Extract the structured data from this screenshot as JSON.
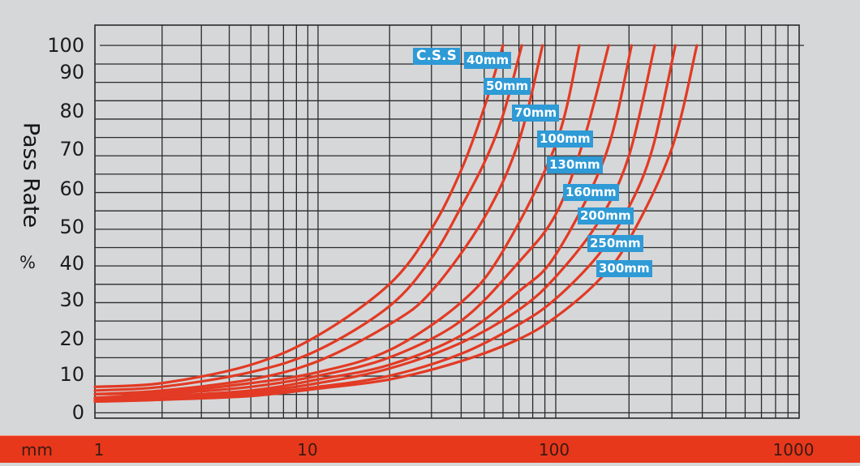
{
  "chart_data": {
    "type": "line",
    "title": "",
    "xlabel": "mm",
    "ylabel": "Pass Rate",
    "ylabel_unit": "%",
    "x_scale": "log",
    "xlim": [
      1,
      1000
    ],
    "ylim": [
      0,
      100
    ],
    "x_ticks": [
      "1",
      "10",
      "100",
      "1000"
    ],
    "y_ticks": [
      "0",
      "10",
      "20",
      "30",
      "40",
      "50",
      "60",
      "70",
      "80",
      "90",
      "100"
    ],
    "grid": true,
    "legend_header": "C.S.S",
    "line_color": "#e23a24",
    "series": [
      {
        "name": "40mm",
        "points": [
          [
            1,
            7
          ],
          [
            2,
            8
          ],
          [
            5,
            13
          ],
          [
            10,
            21
          ],
          [
            20,
            35
          ],
          [
            30,
            50
          ],
          [
            40,
            66
          ],
          [
            50,
            83
          ],
          [
            60,
            100
          ]
        ]
      },
      {
        "name": "50mm",
        "points": [
          [
            1,
            6
          ],
          [
            2,
            7
          ],
          [
            5,
            11
          ],
          [
            10,
            17
          ],
          [
            20,
            29
          ],
          [
            30,
            42
          ],
          [
            40,
            56
          ],
          [
            50,
            68
          ],
          [
            60,
            81
          ],
          [
            72,
            100
          ]
        ]
      },
      {
        "name": "70mm",
        "points": [
          [
            1,
            5
          ],
          [
            2,
            6
          ],
          [
            5,
            9
          ],
          [
            10,
            14
          ],
          [
            20,
            24
          ],
          [
            30,
            33
          ],
          [
            50,
            53
          ],
          [
            70,
            74
          ],
          [
            88,
            100
          ]
        ]
      },
      {
        "name": "100mm",
        "points": [
          [
            1,
            5
          ],
          [
            2,
            5.5
          ],
          [
            5,
            8
          ],
          [
            10,
            11
          ],
          [
            20,
            17
          ],
          [
            40,
            30
          ],
          [
            60,
            44
          ],
          [
            100,
            73
          ],
          [
            125,
            100
          ]
        ]
      },
      {
        "name": "130mm",
        "points": [
          [
            1,
            4
          ],
          [
            2,
            5
          ],
          [
            5,
            7
          ],
          [
            10,
            10
          ],
          [
            20,
            15
          ],
          [
            40,
            25
          ],
          [
            70,
            41
          ],
          [
            100,
            54
          ],
          [
            130,
            74
          ],
          [
            165,
            100
          ]
        ]
      },
      {
        "name": "160mm",
        "points": [
          [
            1,
            4
          ],
          [
            2,
            4.5
          ],
          [
            5,
            6
          ],
          [
            10,
            9
          ],
          [
            20,
            13
          ],
          [
            40,
            21
          ],
          [
            70,
            33
          ],
          [
            100,
            43
          ],
          [
            160,
            70
          ],
          [
            205,
            100
          ]
        ]
      },
      {
        "name": "200mm",
        "points": [
          [
            1,
            3.5
          ],
          [
            2,
            4
          ],
          [
            5,
            5.5
          ],
          [
            10,
            8
          ],
          [
            20,
            12
          ],
          [
            40,
            19
          ],
          [
            70,
            28
          ],
          [
            100,
            37
          ],
          [
            150,
            52
          ],
          [
            200,
            70
          ],
          [
            255,
            100
          ]
        ]
      },
      {
        "name": "250mm",
        "points": [
          [
            1,
            3
          ],
          [
            2,
            3.5
          ],
          [
            5,
            5
          ],
          [
            10,
            7
          ],
          [
            20,
            10
          ],
          [
            40,
            16
          ],
          [
            70,
            24
          ],
          [
            100,
            31
          ],
          [
            150,
            43
          ],
          [
            200,
            56
          ],
          [
            250,
            72
          ],
          [
            310,
            100
          ]
        ]
      },
      {
        "name": "300mm",
        "points": [
          [
            1,
            3
          ],
          [
            2,
            3.5
          ],
          [
            5,
            4.5
          ],
          [
            10,
            6.5
          ],
          [
            20,
            9
          ],
          [
            40,
            14
          ],
          [
            70,
            20
          ],
          [
            100,
            26
          ],
          [
            150,
            36
          ],
          [
            200,
            47
          ],
          [
            300,
            72
          ],
          [
            380,
            100
          ]
        ]
      }
    ]
  },
  "labels": {
    "header": "C.S.S",
    "sizes": [
      "40mm",
      "50mm",
      "70mm",
      "100mm",
      "130mm",
      "160mm",
      "200mm",
      "250mm",
      "300mm"
    ]
  },
  "axis": {
    "ylabel": "Pass Rate",
    "yunit": "%",
    "xunit": "mm",
    "x_ticks": [
      "1",
      "10",
      "100",
      "1000"
    ],
    "y_ticks": [
      "100",
      "90",
      "80",
      "70",
      "60",
      "50",
      "40",
      "30",
      "20",
      "10",
      "0"
    ]
  },
  "colors": {
    "background": "#d6d7d9",
    "grid": "#2a2a2a",
    "curve": "#e23a24",
    "axis_bar": "#e8381c",
    "label_box": "#2e9ad6"
  }
}
